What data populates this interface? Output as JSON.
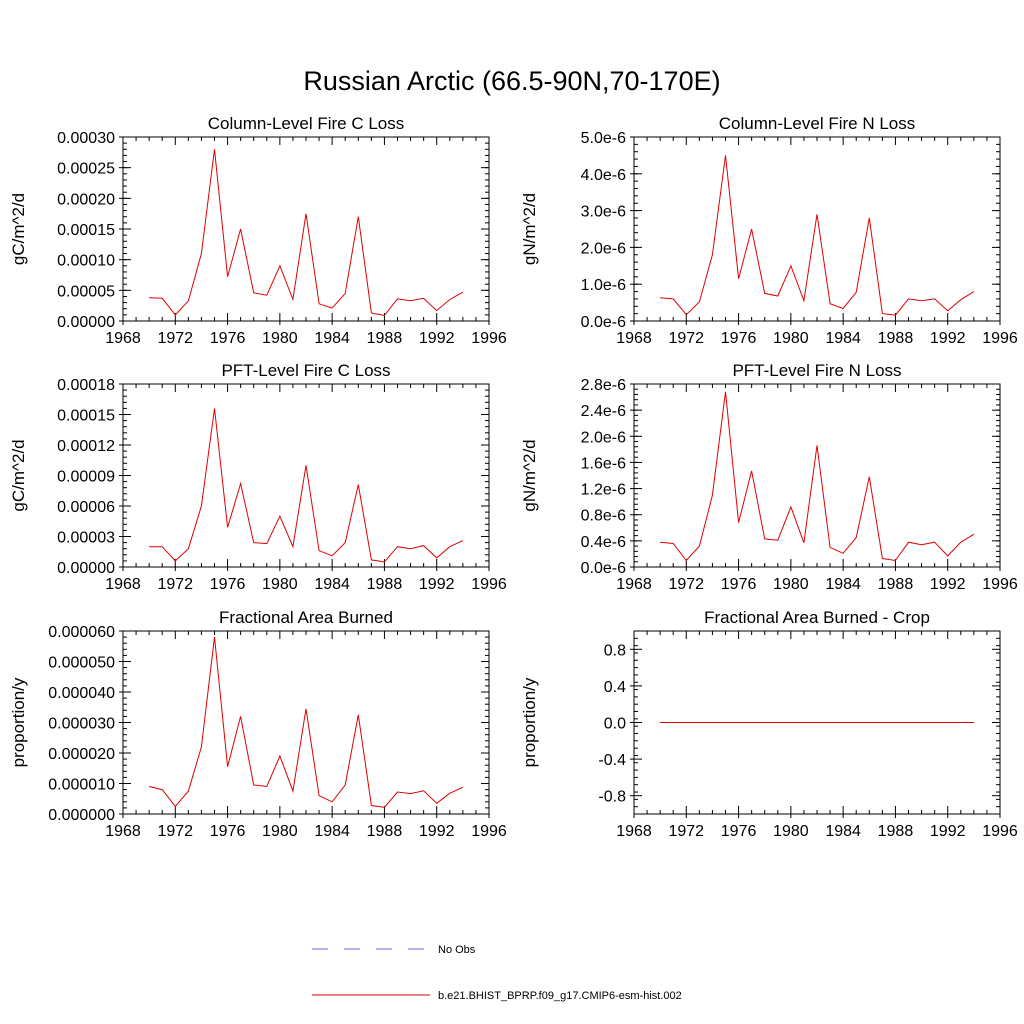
{
  "figure": {
    "title": "Russian Arctic (66.5-90N,70-170E)"
  },
  "legend": [
    {
      "label": "No Obs",
      "color": "#6a6ad8",
      "dashed": true
    },
    {
      "label": "b.e21.BHIST_BPRP.f09_g17.CMIP6-esm-hist.002",
      "color": "#e00000",
      "dashed": false
    }
  ],
  "colors": {
    "series": "#e00000",
    "noobs": "#6a6ad8",
    "axis": "#000000"
  },
  "chart_data": [
    {
      "type": "line",
      "title": "Column-Level Fire C Loss",
      "ylabel": "gC/m^2/d",
      "xlim": [
        1968,
        1996
      ],
      "xticks": [
        "1968",
        "1972",
        "1976",
        "1980",
        "1984",
        "1988",
        "1992",
        "1996"
      ],
      "ylim": [
        0,
        0.0003
      ],
      "yticks": [
        "0.00000",
        "0.00005",
        "0.00010",
        "0.00015",
        "0.00020",
        "0.00025",
        "0.00030"
      ],
      "x": [
        1970,
        1971,
        1972,
        1973,
        1974,
        1975,
        1976,
        1977,
        1978,
        1979,
        1980,
        1981,
        1982,
        1983,
        1984,
        1985,
        1986,
        1987,
        1988,
        1989,
        1990,
        1991,
        1992,
        1993,
        1994
      ],
      "series": [
        {
          "values": [
            3.8e-05,
            3.7e-05,
            1e-05,
            3.3e-05,
            0.00011,
            0.00028,
            7.2e-05,
            0.00015,
            4.6e-05,
            4.2e-05,
            9e-05,
            3.5e-05,
            0.000175,
            2.8e-05,
            2.1e-05,
            4.5e-05,
            0.00017,
            1.3e-05,
            9e-06,
            3.6e-05,
            3.3e-05,
            3.7e-05,
            1.7e-05,
            3.5e-05,
            4.7e-05
          ]
        }
      ]
    },
    {
      "type": "line",
      "title": "Column-Level Fire N Loss",
      "ylabel": "gN/m^2/d",
      "xlim": [
        1968,
        1996
      ],
      "xticks": [
        "1968",
        "1972",
        "1976",
        "1980",
        "1984",
        "1988",
        "1992",
        "1996"
      ],
      "ylim": [
        0,
        5e-06
      ],
      "yticks": [
        "0.0e-6",
        "1.0e-6",
        "2.0e-6",
        "3.0e-6",
        "4.0e-6",
        "5.0e-6"
      ],
      "x": [
        1970,
        1971,
        1972,
        1973,
        1974,
        1975,
        1976,
        1977,
        1978,
        1979,
        1980,
        1981,
        1982,
        1983,
        1984,
        1985,
        1986,
        1987,
        1988,
        1989,
        1990,
        1991,
        1992,
        1993,
        1994
      ],
      "series": [
        {
          "values": [
            6.3e-07,
            6e-07,
            1.7e-07,
            5.2e-07,
            1.8e-06,
            4.5e-06,
            1.15e-06,
            2.5e-06,
            7.5e-07,
            6.8e-07,
            1.5e-06,
            5.5e-07,
            2.9e-06,
            4.7e-07,
            3.4e-07,
            7.8e-07,
            2.8e-06,
            2e-07,
            1.6e-07,
            6e-07,
            5.5e-07,
            6e-07,
            2.8e-07,
            5.8e-07,
            8e-07
          ]
        }
      ]
    },
    {
      "type": "line",
      "title": "PFT-Level Fire C Loss",
      "ylabel": "gC/m^2/d",
      "xlim": [
        1968,
        1996
      ],
      "xticks": [
        "1968",
        "1972",
        "1976",
        "1980",
        "1984",
        "1988",
        "1992",
        "1996"
      ],
      "ylim": [
        0,
        0.00018
      ],
      "yticks": [
        "0.00000",
        "0.00003",
        "0.00006",
        "0.00009",
        "0.00012",
        "0.00015",
        "0.00018"
      ],
      "x": [
        1970,
        1971,
        1972,
        1973,
        1974,
        1975,
        1976,
        1977,
        1978,
        1979,
        1980,
        1981,
        1982,
        1983,
        1984,
        1985,
        1986,
        1987,
        1988,
        1989,
        1990,
        1991,
        1992,
        1993,
        1994
      ],
      "series": [
        {
          "values": [
            2e-05,
            2e-05,
            6e-06,
            1.8e-05,
            6e-05,
            0.000156,
            3.9e-05,
            8.2e-05,
            2.4e-05,
            2.3e-05,
            5e-05,
            2e-05,
            0.0001,
            1.6e-05,
            1.1e-05,
            2.4e-05,
            8.1e-05,
            7e-06,
            5e-06,
            2e-05,
            1.8e-05,
            2.1e-05,
            9e-06,
            2e-05,
            2.6e-05
          ]
        }
      ]
    },
    {
      "type": "line",
      "title": "PFT-Level Fire N Loss",
      "ylabel": "gN/m^2/d",
      "xlim": [
        1968,
        1996
      ],
      "xticks": [
        "1968",
        "1972",
        "1976",
        "1980",
        "1984",
        "1988",
        "1992",
        "1996"
      ],
      "ylim": [
        0,
        2.8e-06
      ],
      "yticks": [
        "0.0e-6",
        "0.4e-6",
        "0.8e-6",
        "1.2e-6",
        "1.6e-6",
        "2.0e-6",
        "2.4e-6",
        "2.8e-6"
      ],
      "x": [
        1970,
        1971,
        1972,
        1973,
        1974,
        1975,
        1976,
        1977,
        1978,
        1979,
        1980,
        1981,
        1982,
        1983,
        1984,
        1985,
        1986,
        1987,
        1988,
        1989,
        1990,
        1991,
        1992,
        1993,
        1994
      ],
      "series": [
        {
          "values": [
            3.8e-07,
            3.6e-07,
            1e-07,
            3.2e-07,
            1.1e-06,
            2.68e-06,
            6.8e-07,
            1.47e-06,
            4.3e-07,
            4.1e-07,
            9.2e-07,
            3.7e-07,
            1.86e-06,
            3e-07,
            2.1e-07,
            4.5e-07,
            1.38e-06,
            1.3e-07,
            1e-07,
            3.8e-07,
            3.4e-07,
            3.8e-07,
            1.7e-07,
            3.8e-07,
            5e-07
          ]
        }
      ]
    },
    {
      "type": "line",
      "title": "Fractional Area Burned",
      "ylabel": "proportion/y",
      "xlim": [
        1968,
        1996
      ],
      "xticks": [
        "1968",
        "1972",
        "1976",
        "1980",
        "1984",
        "1988",
        "1992",
        "1996"
      ],
      "ylim": [
        0,
        6e-05
      ],
      "yticks": [
        "0.000000",
        "0.000010",
        "0.000020",
        "0.000030",
        "0.000040",
        "0.000050",
        "0.000060"
      ],
      "x": [
        1970,
        1971,
        1972,
        1973,
        1974,
        1975,
        1976,
        1977,
        1978,
        1979,
        1980,
        1981,
        1982,
        1983,
        1984,
        1985,
        1986,
        1987,
        1988,
        1989,
        1990,
        1991,
        1992,
        1993,
        1994
      ],
      "series": [
        {
          "values": [
            9e-06,
            8e-06,
            2.5e-06,
            7.5e-06,
            2.2e-05,
            5.8e-05,
            1.55e-05,
            3.2e-05,
            9.5e-06,
            9e-06,
            1.9e-05,
            7.5e-06,
            3.45e-05,
            6e-06,
            4e-06,
            9.5e-06,
            3.25e-05,
            2.8e-06,
            2.2e-06,
            7.2e-06,
            6.7e-06,
            7.6e-06,
            3.5e-06,
            6.8e-06,
            8.8e-06
          ]
        }
      ]
    },
    {
      "type": "line",
      "title": "Fractional Area Burned - Crop",
      "ylabel": "proportion/y",
      "xlim": [
        1968,
        1996
      ],
      "xticks": [
        "1968",
        "1972",
        "1976",
        "1980",
        "1984",
        "1988",
        "1992",
        "1996"
      ],
      "ylim": [
        -1,
        1
      ],
      "yticks": [
        "-0.8",
        "-0.4",
        "0.0",
        "0.4",
        "0.8"
      ],
      "ytickvals": [
        -0.8,
        -0.4,
        0,
        0.4,
        0.8
      ],
      "x": [
        1970,
        1971,
        1972,
        1973,
        1974,
        1975,
        1976,
        1977,
        1978,
        1979,
        1980,
        1981,
        1982,
        1983,
        1984,
        1985,
        1986,
        1987,
        1988,
        1989,
        1990,
        1991,
        1992,
        1993,
        1994
      ],
      "series": [
        {
          "values": [
            0,
            0,
            0,
            0,
            0,
            0,
            0,
            0,
            0,
            0,
            0,
            0,
            0,
            0,
            0,
            0,
            0,
            0,
            0,
            0,
            0,
            0,
            0,
            0,
            0
          ]
        }
      ]
    }
  ]
}
